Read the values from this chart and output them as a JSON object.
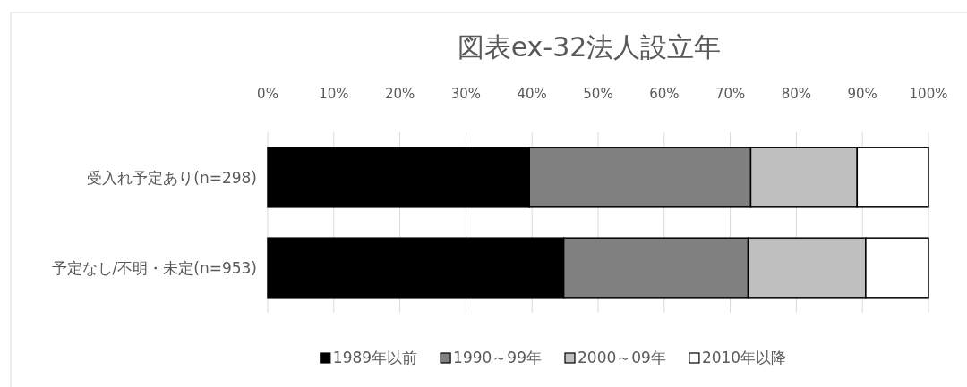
{
  "chart_data": {
    "type": "bar",
    "orientation": "horizontal",
    "stacked": true,
    "title": "図表ex-32法人設立年",
    "categories": [
      "受入れ予定あり(n=298)",
      "予定なし/不明・未定(n=953)"
    ],
    "series": [
      {
        "name": "1989年以前",
        "color": "#000000",
        "values": [
          39.6,
          44.8
        ]
      },
      {
        "name": "1990～99年",
        "color": "#808080",
        "values": [
          33.5,
          27.9
        ]
      },
      {
        "name": "2000～09年",
        "color": "#bfbfbf",
        "values": [
          16.1,
          17.8
        ]
      },
      {
        "name": "2010年以降",
        "color": "#ffffff",
        "values": [
          10.8,
          9.5
        ]
      }
    ],
    "xlim": [
      0,
      100
    ],
    "xticks": [
      {
        "value": 0,
        "label": "0%"
      },
      {
        "value": 10,
        "label": "10%"
      },
      {
        "value": 20,
        "label": "20%"
      },
      {
        "value": 30,
        "label": "30%"
      },
      {
        "value": 40,
        "label": "40%"
      },
      {
        "value": 50,
        "label": "50%"
      },
      {
        "value": 60,
        "label": "60%"
      },
      {
        "value": 70,
        "label": "70%"
      },
      {
        "value": 80,
        "label": "80%"
      },
      {
        "value": 90,
        "label": "90%"
      },
      {
        "value": 100,
        "label": "100%"
      }
    ],
    "grid": "x",
    "legend": "bottom"
  }
}
